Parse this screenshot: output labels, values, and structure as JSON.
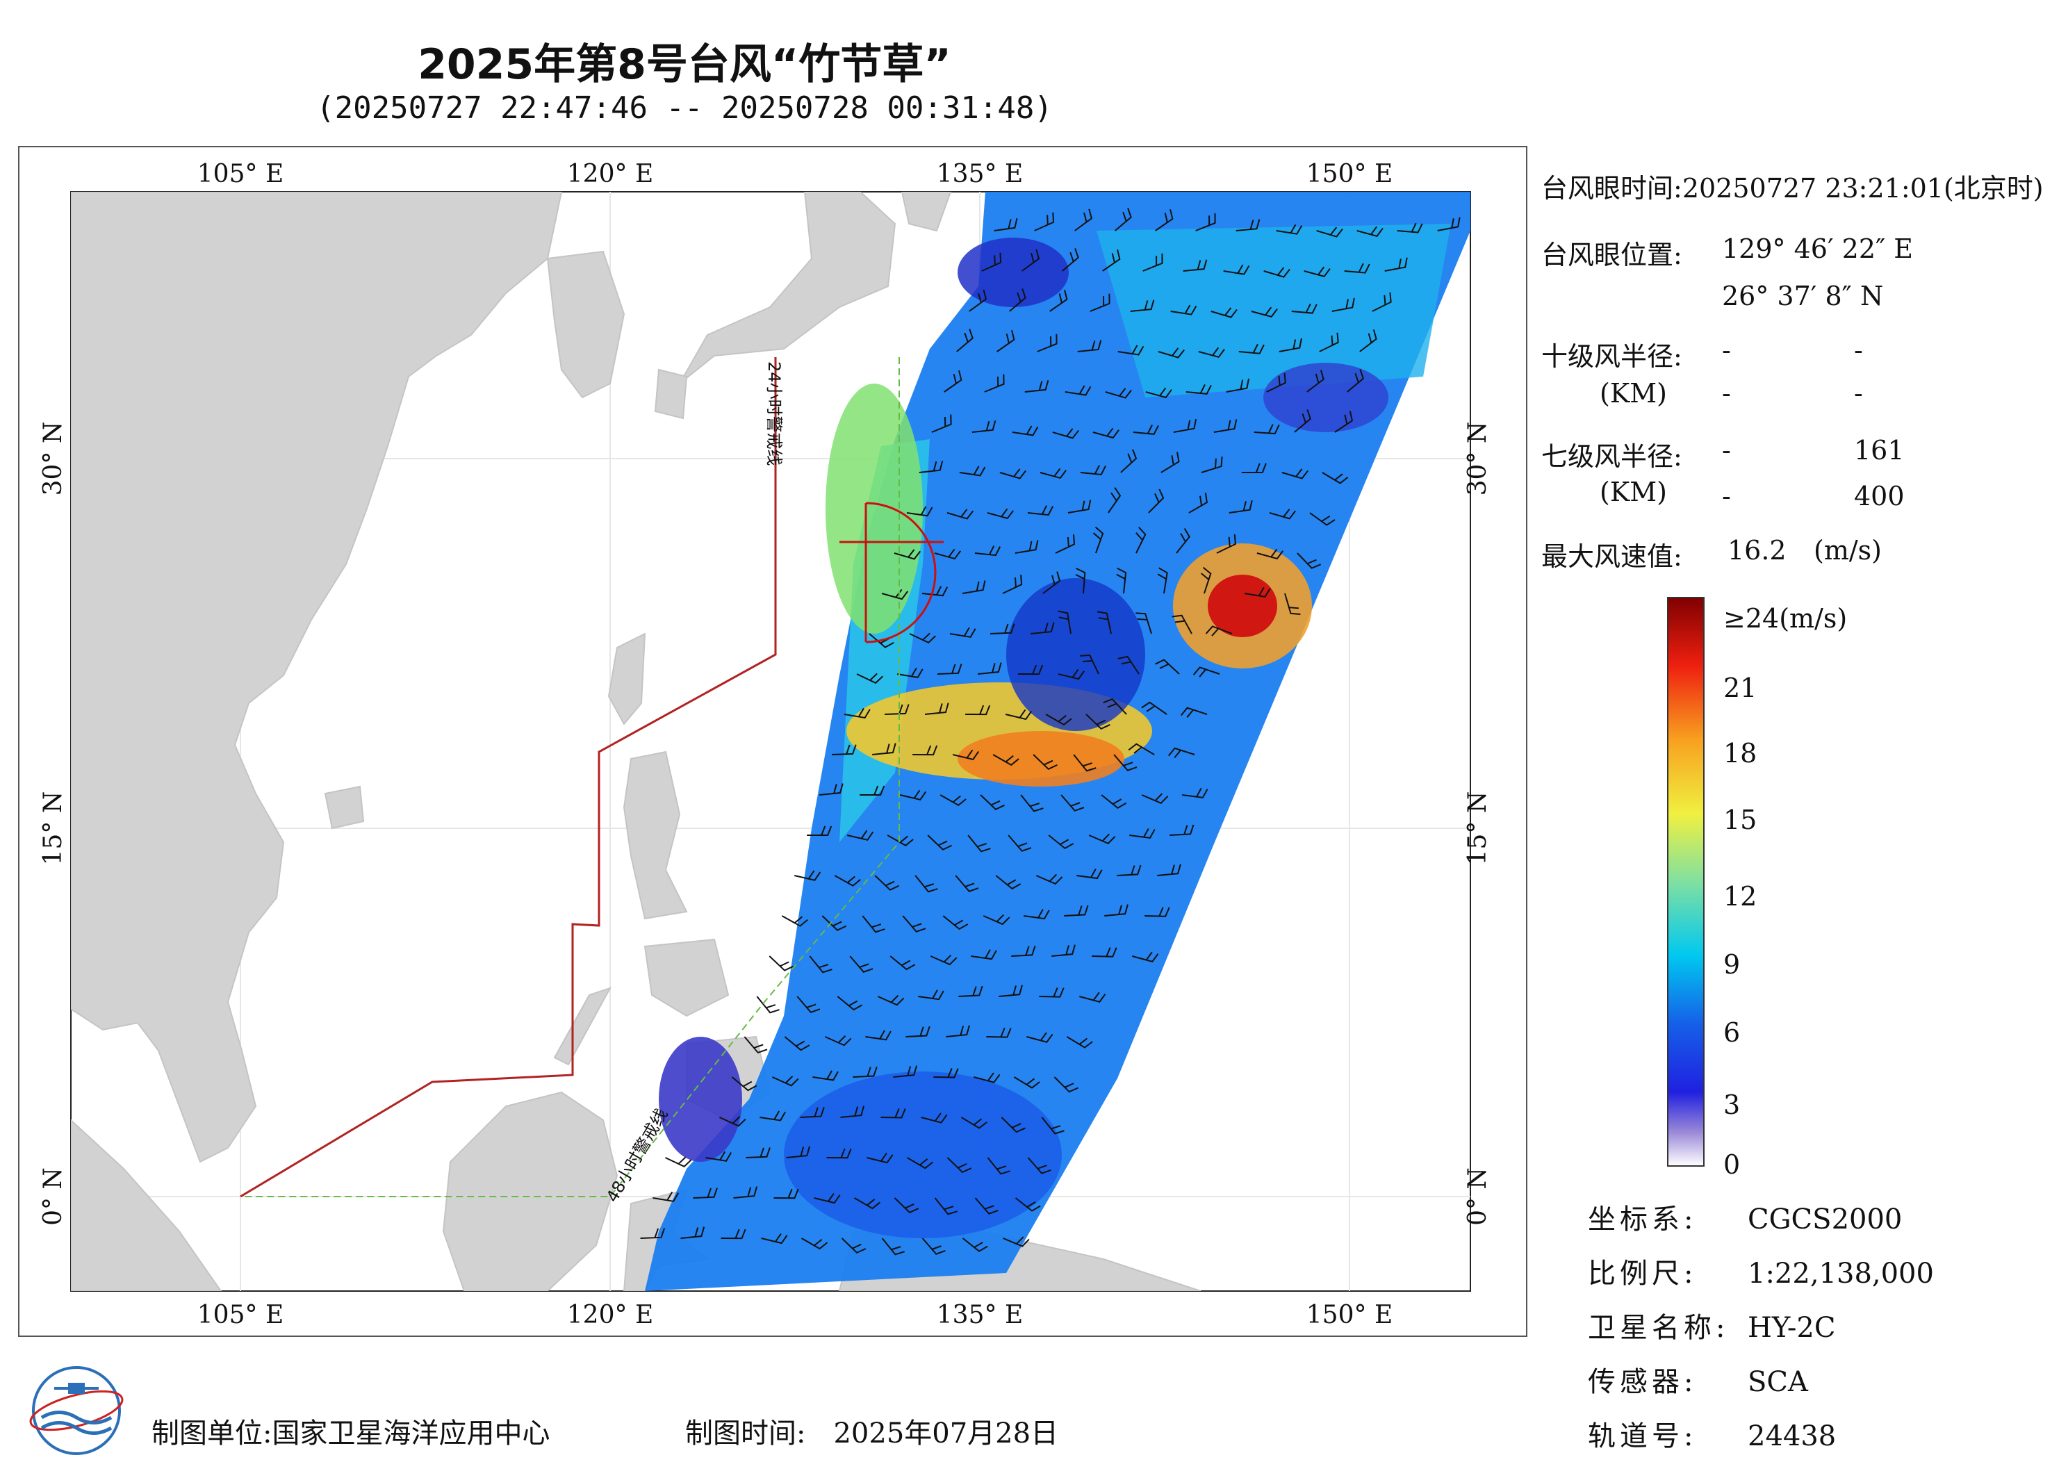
{
  "title": "2025年第8号台风“竹节草”",
  "subtitle": "(20250727 22:47:46 -- 20250728 00:31:48)",
  "map": {
    "lon_range": [
      100.5,
      155
    ],
    "lat_range": [
      -4.5,
      41
    ],
    "lon_ticks": [
      "105° E",
      "120° E",
      "135° E",
      "150° E"
    ],
    "lat_ticks": [
      "30° N",
      "15° N",
      "0° N"
    ],
    "lines": {
      "warn24": "24小时警戒线",
      "warn48": "48小时警戒线"
    },
    "typhoon_eye": {
      "lon": 129.77,
      "lat": 26.62
    },
    "colors": {
      "land": "#d2d2d2",
      "sea": "#ffffff",
      "warn24": "#b22222",
      "warn48": "#66bb44"
    }
  },
  "info": {
    "eye_time_label": "台风眼时间:",
    "eye_time_value": "20250727 23:21:01(北京时)",
    "eye_pos_label": "台风眼位置:",
    "eye_pos_lon": "129° 46′ 22″ E",
    "eye_pos_lat": "26° 37′ 8″ N",
    "r10_label": "十级风半径:",
    "r10_unit": "(KM)",
    "r10_values": [
      "-",
      "-",
      "-",
      "-"
    ],
    "r7_label": "七级风半径:",
    "r7_unit": "(KM)",
    "r7_values": [
      "-",
      "161",
      "-",
      "400"
    ],
    "max_wind_label": "最大风速值:",
    "max_wind_value": "16.2",
    "max_wind_unit": "(m/s)"
  },
  "colorbar": {
    "labels": [
      "≥24(m/s)",
      "21",
      "18",
      "15",
      "12",
      "9",
      "6",
      "3",
      "0"
    ]
  },
  "meta": {
    "crs_label": "坐标系:",
    "crs_value": "CGCS2000",
    "scale_label": "比例尺:",
    "scale_value": "1:22,138,000",
    "sat_label": "卫星名称:",
    "sat_value": "HY-2C",
    "sensor_label": "传感器:",
    "sensor_value": "SCA",
    "orbit_label": "轨道号:",
    "orbit_value": "24438"
  },
  "footer": {
    "maker_label": "制图单位:",
    "maker_value": "国家卫星海洋应用中心",
    "date_label": "制图时间:",
    "date_value": "2025年07月28日"
  }
}
